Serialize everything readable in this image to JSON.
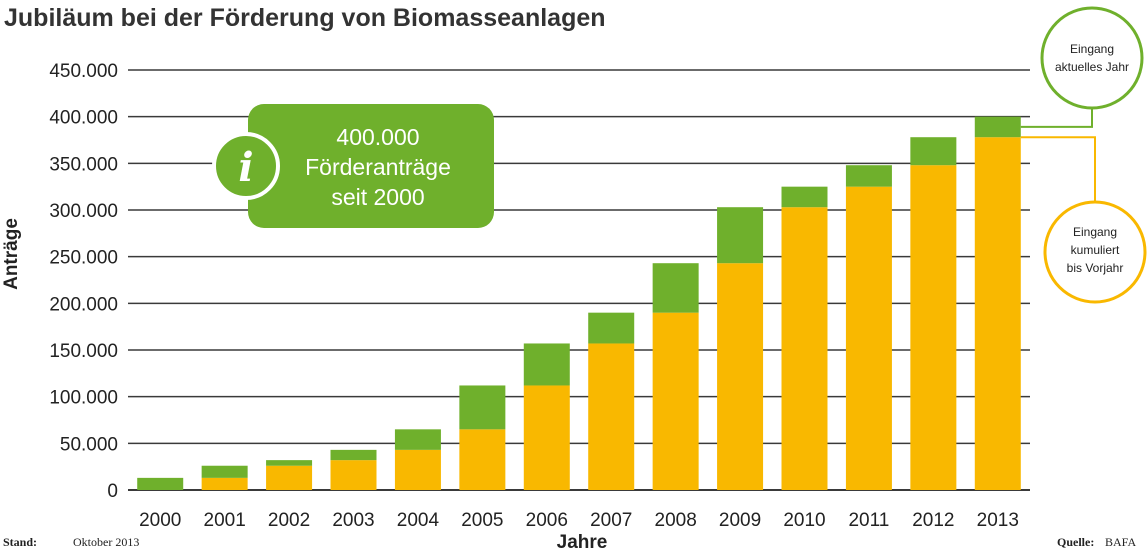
{
  "chart_data": {
    "type": "bar",
    "stacked": true,
    "title": "Jubiläum bei der Förderung von Biomasseanlagen",
    "xlabel": "Jahre",
    "ylabel": "Anträge",
    "ylim": [
      0,
      450000
    ],
    "yticks": [
      "0",
      "50.000",
      "100.000",
      "150.000",
      "200.000",
      "250.000",
      "300.000",
      "350.000",
      "400.000",
      "450.000"
    ],
    "grid": true,
    "categories": [
      "2000",
      "2001",
      "2002",
      "2003",
      "2004",
      "2005",
      "2006",
      "2007",
      "2008",
      "2009",
      "2010",
      "2011",
      "2012",
      "2013"
    ],
    "series": [
      {
        "name": "Eingang kumuliert bis Vorjahr",
        "color": "#F9B800",
        "values": [
          0,
          13000,
          26000,
          32000,
          43000,
          65000,
          112000,
          157000,
          190000,
          243000,
          303000,
          325000,
          348000,
          378000
        ]
      },
      {
        "name": "Eingang aktuelles Jahr",
        "color": "#6FB02C",
        "values": [
          13000,
          13000,
          6000,
          11000,
          22000,
          47000,
          45000,
          33000,
          53000,
          60000,
          22000,
          23000,
          30000,
          22000
        ]
      }
    ],
    "legend": {
      "current_lines": [
        "Eingang",
        "aktuelles Jahr"
      ],
      "cumulative_lines": [
        "Eingang",
        "kumuliert",
        "bis Vorjahr"
      ]
    },
    "annotation": {
      "lines": [
        "400.000",
        "Förderanträge",
        "seit 2000"
      ],
      "icon": "info-icon",
      "icon_glyph": "i"
    }
  },
  "footer": {
    "stand_label": "Stand:",
    "stand_value": "Oktober 2013",
    "quelle_label": "Quelle:",
    "quelle_value": "BAFA"
  },
  "colors": {
    "green": "#6FB02C",
    "orange": "#F9B800",
    "grid": "#3a3a3a"
  }
}
